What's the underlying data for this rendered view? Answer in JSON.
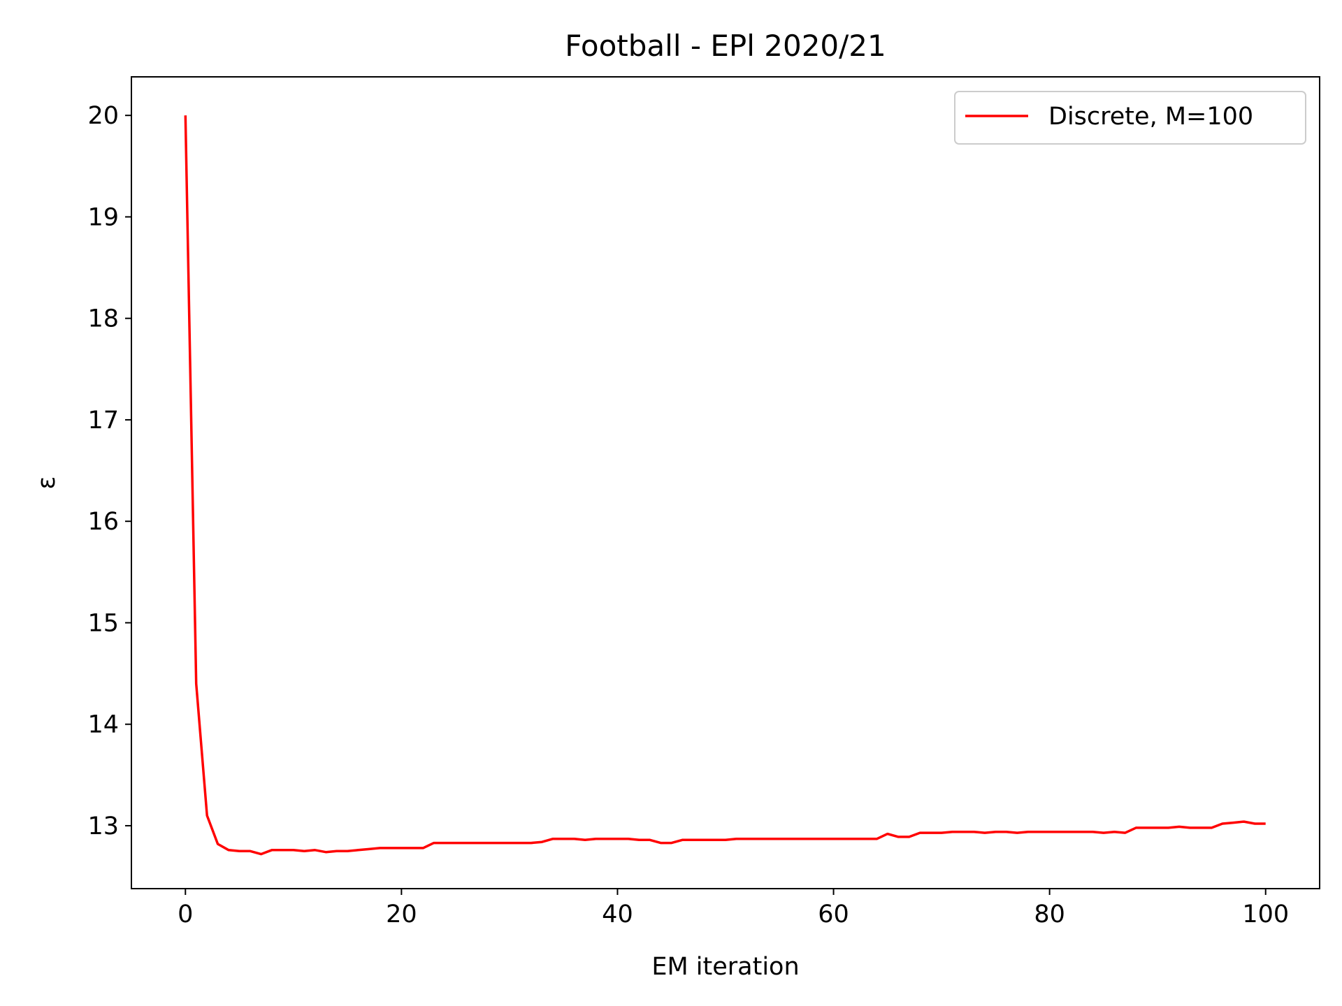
{
  "chart_data": {
    "type": "line",
    "title": "Football - EPl 2020/21",
    "xlabel": "EM iteration",
    "ylabel": "ε",
    "xlim": [
      -5,
      105
    ],
    "ylim": [
      12.38,
      20.38
    ],
    "xticks": [
      0,
      20,
      40,
      60,
      80,
      100
    ],
    "yticks": [
      13,
      14,
      15,
      16,
      17,
      18,
      19,
      20
    ],
    "grid": false,
    "legend_position": "top-right",
    "series": [
      {
        "name": "Discrete, M=100",
        "color": "#ff0000",
        "x": [
          0,
          1,
          2,
          3,
          4,
          5,
          6,
          7,
          8,
          9,
          10,
          11,
          12,
          13,
          14,
          15,
          16,
          17,
          18,
          19,
          20,
          21,
          22,
          23,
          24,
          25,
          26,
          27,
          28,
          29,
          30,
          31,
          32,
          33,
          34,
          35,
          36,
          37,
          38,
          39,
          40,
          41,
          42,
          43,
          44,
          45,
          46,
          47,
          48,
          49,
          50,
          51,
          52,
          53,
          54,
          55,
          56,
          57,
          58,
          59,
          60,
          61,
          62,
          63,
          64,
          65,
          66,
          67,
          68,
          69,
          70,
          71,
          72,
          73,
          74,
          75,
          76,
          77,
          78,
          79,
          80,
          81,
          82,
          83,
          84,
          85,
          86,
          87,
          88,
          89,
          90,
          91,
          92,
          93,
          94,
          95,
          96,
          97,
          98,
          99,
          100
        ],
        "y": [
          20.0,
          14.4,
          13.1,
          12.82,
          12.76,
          12.75,
          12.75,
          12.72,
          12.76,
          12.76,
          12.76,
          12.75,
          12.76,
          12.74,
          12.75,
          12.75,
          12.76,
          12.77,
          12.78,
          12.78,
          12.78,
          12.78,
          12.78,
          12.83,
          12.83,
          12.83,
          12.83,
          12.83,
          12.83,
          12.83,
          12.83,
          12.83,
          12.83,
          12.84,
          12.87,
          12.87,
          12.87,
          12.86,
          12.87,
          12.87,
          12.87,
          12.87,
          12.86,
          12.86,
          12.83,
          12.83,
          12.86,
          12.86,
          12.86,
          12.86,
          12.86,
          12.87,
          12.87,
          12.87,
          12.87,
          12.87,
          12.87,
          12.87,
          12.87,
          12.87,
          12.87,
          12.87,
          12.87,
          12.87,
          12.87,
          12.92,
          12.89,
          12.89,
          12.93,
          12.93,
          12.93,
          12.94,
          12.94,
          12.94,
          12.93,
          12.94,
          12.94,
          12.93,
          12.94,
          12.94,
          12.94,
          12.94,
          12.94,
          12.94,
          12.94,
          12.93,
          12.94,
          12.93,
          12.98,
          12.98,
          12.98,
          12.98,
          12.99,
          12.98,
          12.98,
          12.98,
          13.02,
          13.03,
          13.04,
          13.02,
          13.02
        ]
      }
    ]
  }
}
